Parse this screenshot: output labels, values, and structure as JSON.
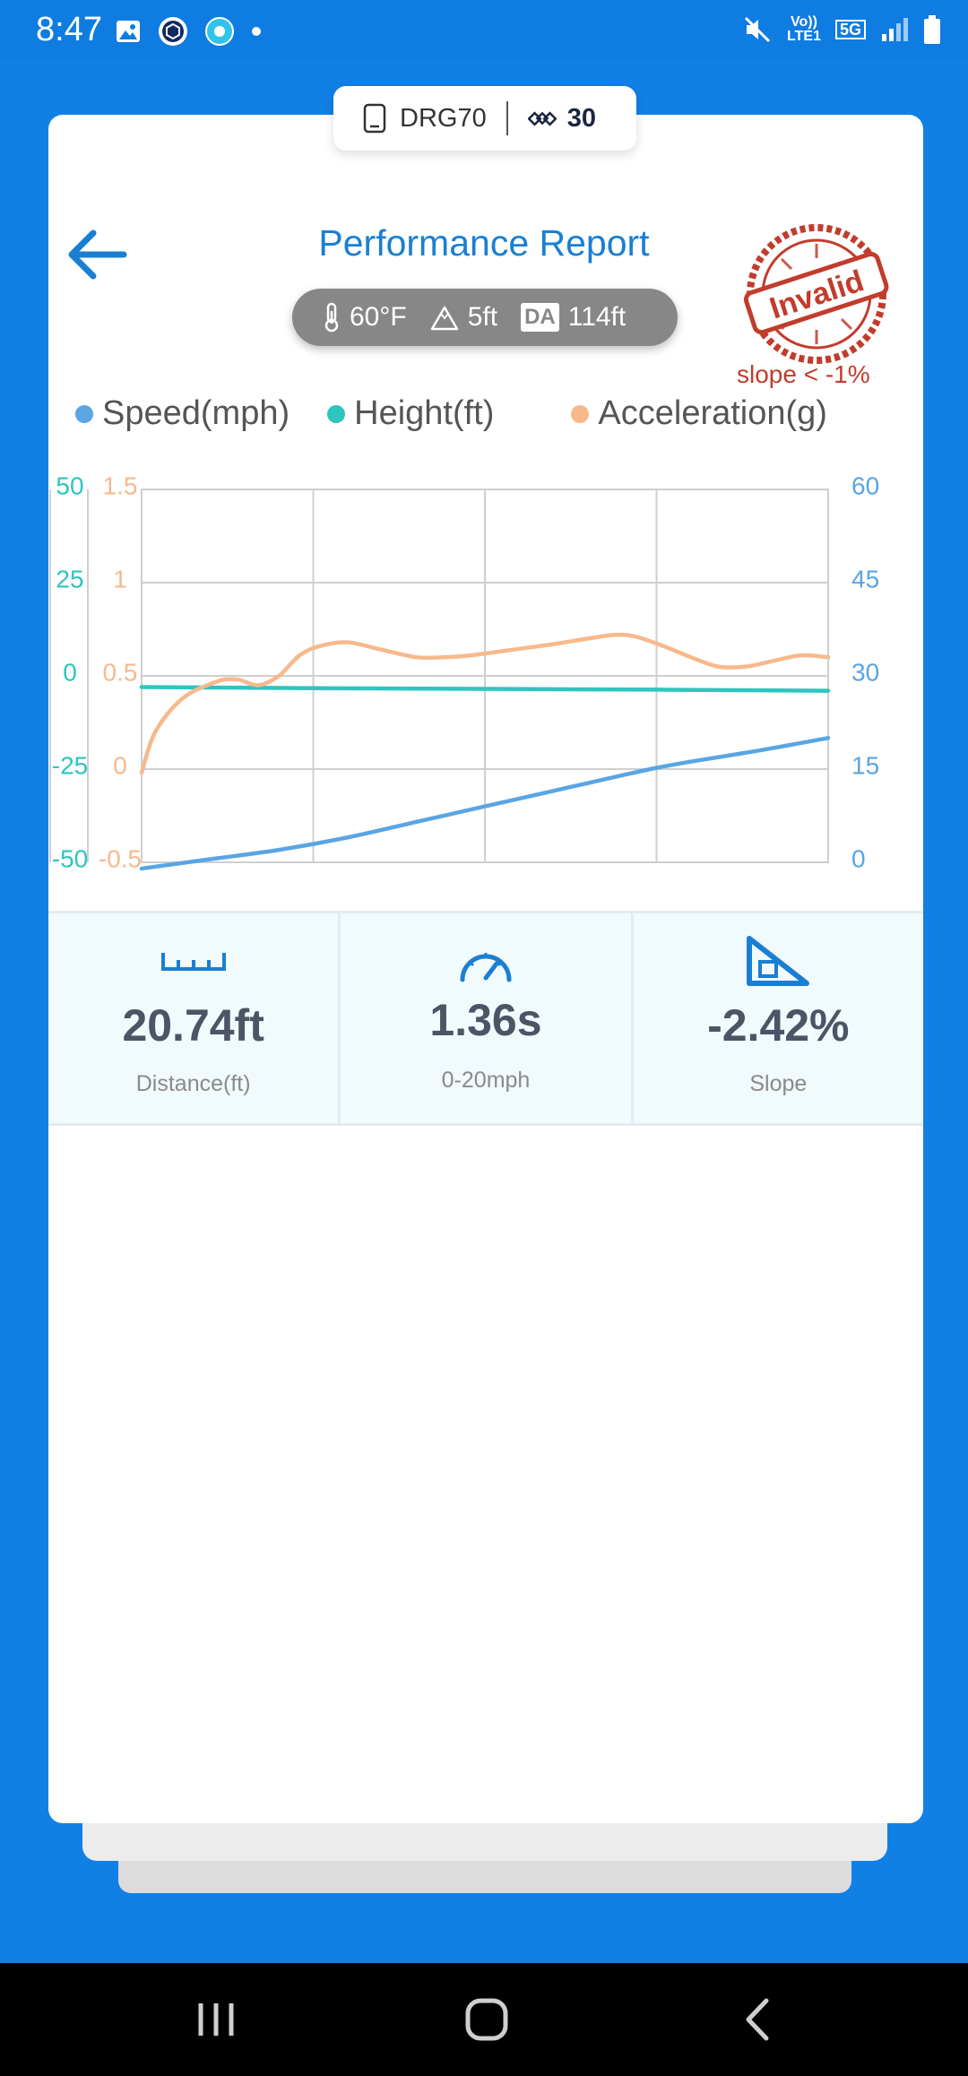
{
  "status_bar": {
    "time": "8:47",
    "network_top": "Vo))",
    "network_bottom": "LTE1",
    "five_g": "5G"
  },
  "device": {
    "name": "DRG70",
    "count": "30"
  },
  "header": {
    "title": "Performance Report"
  },
  "conditions": {
    "temperature": "60°F",
    "elevation": "5ft",
    "da_label": "DA",
    "density_altitude": "114ft"
  },
  "stamp": {
    "text": "Invalid",
    "note": "slope < -1%"
  },
  "legend": [
    {
      "label": "Speed(mph)",
      "color": "#5aa5e3"
    },
    {
      "label": "Height(ft)",
      "color": "#2ec5c0"
    },
    {
      "label": "Acceleration(g)",
      "color": "#f7b98c"
    }
  ],
  "chart_data": {
    "type": "line",
    "x": [
      0,
      0.25,
      0.5,
      0.75,
      1.0
    ],
    "axes": {
      "height": {
        "side": "left-outer",
        "ticks": [
          "50",
          "25",
          "0",
          "-25",
          "-50"
        ],
        "range": [
          -50,
          50
        ],
        "color": "#2ec5c0"
      },
      "acceleration": {
        "side": "left-inner",
        "ticks": [
          "1.5",
          "1",
          "0.5",
          "0",
          "-0.5"
        ],
        "range": [
          -0.5,
          1.5
        ],
        "color": "#f7b98c"
      },
      "speed": {
        "side": "right",
        "ticks": [
          "60",
          "45",
          "30",
          "15",
          "0"
        ],
        "range": [
          0,
          60
        ],
        "color": "#5aa5e3"
      }
    },
    "series": [
      {
        "name": "Speed(mph)",
        "axis": "speed",
        "color": "#5aa5e3",
        "x": [
          0,
          0.1,
          0.2,
          0.3,
          0.4,
          0.5,
          0.6,
          0.7,
          0.75,
          0.8,
          0.9,
          1.0
        ],
        "y": [
          -1,
          0.5,
          2,
          4,
          6.5,
          9,
          11.5,
          14,
          15.2,
          16.2,
          18,
          20
        ]
      },
      {
        "name": "Height(ft)",
        "axis": "height",
        "color": "#2ec5c0",
        "x": [
          0,
          0.25,
          0.5,
          0.75,
          1.0
        ],
        "y": [
          -3,
          -3.3,
          -3.5,
          -3.7,
          -4
        ]
      },
      {
        "name": "Acceleration(g)",
        "axis": "acceleration",
        "color": "#f7b98c",
        "x": [
          0,
          0.02,
          0.06,
          0.11,
          0.14,
          0.17,
          0.2,
          0.23,
          0.26,
          0.3,
          0.35,
          0.4,
          0.44,
          0.48,
          0.52,
          0.56,
          0.6,
          0.65,
          0.69,
          0.72,
          0.76,
          0.8,
          0.84,
          0.88,
          0.92,
          0.96,
          1.0
        ],
        "y": [
          -0.02,
          0.2,
          0.38,
          0.47,
          0.48,
          0.45,
          0.5,
          0.61,
          0.66,
          0.68,
          0.64,
          0.6,
          0.6,
          0.61,
          0.63,
          0.65,
          0.67,
          0.7,
          0.72,
          0.71,
          0.66,
          0.6,
          0.55,
          0.55,
          0.58,
          0.61,
          0.6
        ]
      }
    ],
    "grid": true
  },
  "stats": [
    {
      "icon": "ruler-icon",
      "value": "20.74ft",
      "label": "Distance(ft)"
    },
    {
      "icon": "speedometer-icon",
      "value": "1.36s",
      "label": "0-20mph"
    },
    {
      "icon": "slope-icon",
      "value": "-2.42%",
      "label": "Slope"
    }
  ],
  "colors": {
    "background": "#1180e5",
    "accent": "#1a7fd2",
    "stamp": "#c23c2c"
  }
}
